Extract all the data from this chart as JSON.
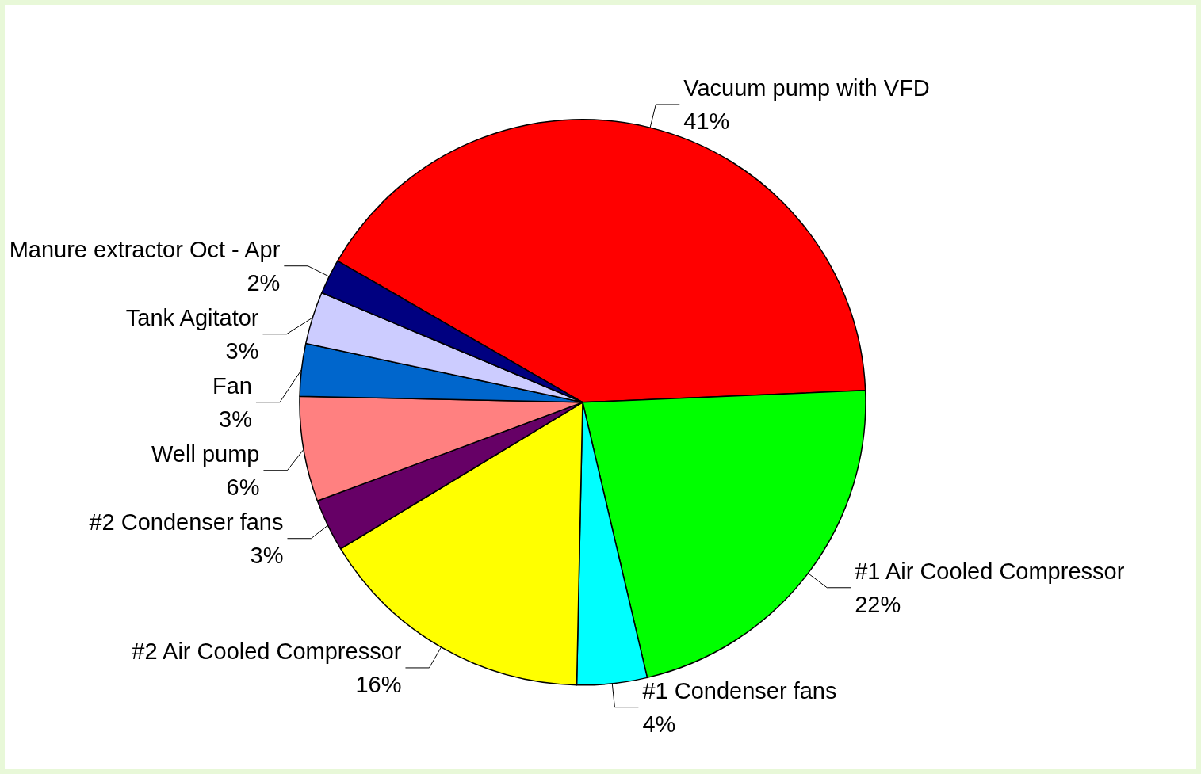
{
  "chart_data": {
    "type": "pie",
    "categories": [
      "Vacuum pump with VFD",
      "#1 Air Cooled Compressor",
      "#1 Condenser fans",
      "#2 Air Cooled Compressor",
      "#2 Condenser fans",
      "Well pump",
      "Fan",
      "Tank Agitator",
      "Manure extractor Oct - Apr"
    ],
    "values": [
      41,
      22,
      4,
      16,
      3,
      6,
      3,
      3,
      2
    ],
    "value_labels": [
      "41%",
      "22%",
      "4%",
      "16%",
      "3%",
      "6%",
      "3%",
      "3%",
      "2%"
    ],
    "colors": [
      "#ff0000",
      "#00ff00",
      "#00ffff",
      "#ffff00",
      "#660066",
      "#ff8080",
      "#0066cc",
      "#ccccff",
      "#000080"
    ],
    "legend": false
  }
}
